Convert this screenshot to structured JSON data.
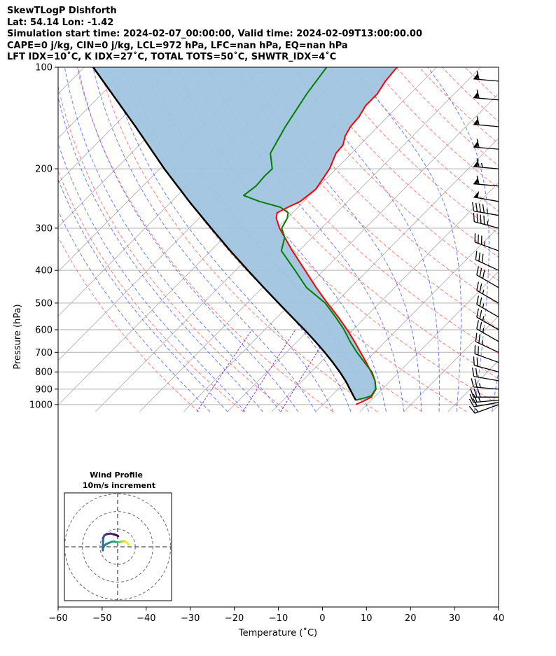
{
  "title_lines": [
    "SkewTLogP Dishforth",
    "Lat: 54.14   Lon: -1.42",
    "Simulation start time: 2024-02-07_00:00:00, Valid time: 2024-02-09T13:00:00.00",
    "CAPE=0 j/kg, CIN=0 j/kg, LCL=972 hPa, LFC=nan hPa, EQ=nan hPa",
    "LFT IDX=10˚C, K IDX=27˚C, TOTAL TOTS=50˚C, SHWTR_IDX=4˚C"
  ],
  "colors": {
    "temperature": "#ff0000",
    "dewpoint": "#008000",
    "parcel": "#000000",
    "cape_fill": "#a0c4df",
    "dry_adiabat": "#ff6666",
    "moist_adiabat": "#5566ff",
    "mixing_ratio": "#9933cc",
    "isotherm": "#aaaaaa",
    "grid": "#b0b0b0"
  },
  "chart_data": {
    "type": "line",
    "subtype": "skewt-logp",
    "xlabel": "Temperature ($^\\circ$C)",
    "ylabel": "Pressure (hPa)",
    "xlim": [
      -60,
      40
    ],
    "ylim": [
      1050,
      100
    ],
    "y_scale": "log",
    "x_ticks": [
      -60,
      -50,
      -40,
      -30,
      -20,
      -10,
      0,
      10,
      20,
      30,
      40
    ],
    "x_tick_labels": [
      "−60",
      "−50",
      "−40",
      "−30",
      "−20",
      "−10",
      "0",
      "10",
      "20",
      "30",
      "40"
    ],
    "y_ticks": [
      100,
      200,
      300,
      400,
      500,
      600,
      700,
      800,
      900,
      1000
    ],
    "y_tick_labels": [
      "100",
      "200",
      "300",
      "400",
      "500",
      "600",
      "700",
      "800",
      "900",
      "1000"
    ],
    "grid": true,
    "series": [
      {
        "key": "temperature",
        "pressure": [
          1000,
          975,
          950,
          900,
          850,
          800,
          750,
          700,
          650,
          600,
          550,
          500,
          450,
          400,
          350,
          300,
          280,
          270,
          260,
          250,
          230,
          200,
          180,
          170,
          160,
          150,
          140,
          130,
          120,
          110,
          100
        ],
        "values": [
          7.5,
          8.5,
          9.3,
          8.6,
          6.5,
          3.6,
          0.4,
          -3.2,
          -7.0,
          -11.3,
          -16.2,
          -21.8,
          -27.8,
          -34.2,
          -41.5,
          -49.5,
          -52.5,
          -53.5,
          -52.3,
          -50.8,
          -50.0,
          -51.5,
          -53.5,
          -53.8,
          -55.3,
          -56.2,
          -56.5,
          -57.5,
          -57.5,
          -58.5,
          -59.0
        ]
      },
      {
        "key": "dewpoint",
        "pressure": [
          970,
          950,
          940,
          900,
          850,
          800,
          750,
          700,
          650,
          600,
          550,
          500,
          450,
          400,
          350,
          320,
          300,
          280,
          270,
          260,
          250,
          240,
          225,
          210,
          200,
          180,
          150,
          120,
          100
        ],
        "values": [
          6.5,
          8.5,
          9.0,
          8.5,
          6.5,
          3.8,
          0.0,
          -4.0,
          -8.0,
          -12.0,
          -16.8,
          -22.3,
          -30.0,
          -36.5,
          -44.0,
          -46.2,
          -49.0,
          -50.0,
          -51.0,
          -54.0,
          -60.0,
          -65.0,
          -64.3,
          -64.6,
          -64.5,
          -68.4,
          -71.0,
          -73.5,
          -75.0
        ]
      },
      {
        "key": "parcel",
        "pressure": [
          970,
          950,
          900,
          850,
          800,
          750,
          700,
          650,
          600,
          550,
          500,
          450,
          400,
          350,
          300,
          250,
          200,
          150,
          100
        ],
        "values": [
          6.5,
          5.4,
          2.7,
          -0.2,
          -3.5,
          -7.2,
          -11.3,
          -15.9,
          -21.0,
          -26.7,
          -32.9,
          -39.7,
          -47.2,
          -55.6,
          -65.0,
          -76.0,
          -89.0,
          -105.0,
          -128.0
        ]
      }
    ],
    "wind_barbs": {
      "pressure": [
        1000,
        985,
        970,
        950,
        900,
        850,
        800,
        750,
        700,
        650,
        600,
        550,
        500,
        450,
        400,
        350,
        300,
        275,
        250,
        225,
        200,
        175,
        150,
        125,
        110
      ],
      "speed_kt": [
        15,
        20,
        25,
        30,
        25,
        20,
        20,
        20,
        25,
        25,
        25,
        25,
        25,
        30,
        30,
        35,
        45,
        45,
        50,
        60,
        65,
        60,
        60,
        60,
        60
      ],
      "direction_deg": [
        250,
        260,
        265,
        270,
        275,
        280,
        285,
        290,
        295,
        300,
        300,
        300,
        300,
        300,
        295,
        290,
        285,
        280,
        280,
        275,
        275,
        275,
        275,
        275,
        275
      ]
    },
    "hodograph": {
      "title": "Wind Profile",
      "subtitle": "10m/s increment",
      "u": [
        6.2,
        5.5,
        4.5,
        3.5,
        2.5,
        1.5,
        0.5,
        -0.2,
        -0.8,
        -2.0,
        -3.5,
        -5.0,
        -6.5,
        -7.7,
        -8.3,
        -8.4,
        -8.2,
        -7.5,
        -6.0,
        -4.0,
        -2.0,
        -0.5,
        0.3
      ],
      "v": [
        1.2,
        2.2,
        2.8,
        3.2,
        3.0,
        2.8,
        2.5,
        2.6,
        2.6,
        3.0,
        2.8,
        2.2,
        1.5,
        0.5,
        -0.8,
        -2.0,
        5.0,
        6.5,
        7.2,
        7.5,
        7.0,
        6.5,
        6.0
      ]
    }
  }
}
